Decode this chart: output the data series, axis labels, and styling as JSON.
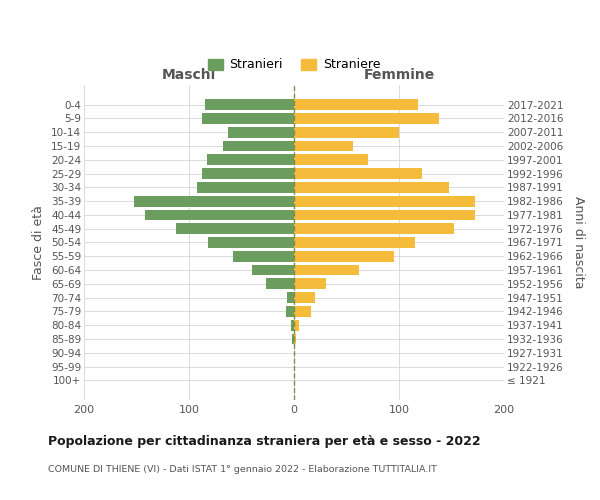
{
  "age_groups": [
    "100+",
    "95-99",
    "90-94",
    "85-89",
    "80-84",
    "75-79",
    "70-74",
    "65-69",
    "60-64",
    "55-59",
    "50-54",
    "45-49",
    "40-44",
    "35-39",
    "30-34",
    "25-29",
    "20-24",
    "15-19",
    "10-14",
    "5-9",
    "0-4"
  ],
  "birth_years": [
    "≤ 1921",
    "1922-1926",
    "1927-1931",
    "1932-1936",
    "1937-1941",
    "1942-1946",
    "1947-1951",
    "1952-1956",
    "1957-1961",
    "1962-1966",
    "1967-1971",
    "1972-1976",
    "1977-1981",
    "1982-1986",
    "1987-1991",
    "1992-1996",
    "1997-2001",
    "2002-2006",
    "2007-2011",
    "2012-2016",
    "2017-2021"
  ],
  "maschi": [
    0,
    0,
    0,
    2,
    3,
    8,
    7,
    27,
    40,
    58,
    82,
    112,
    142,
    152,
    92,
    88,
    83,
    68,
    63,
    88,
    85
  ],
  "femmine": [
    0,
    0,
    0,
    2,
    5,
    16,
    20,
    30,
    62,
    95,
    115,
    152,
    172,
    172,
    148,
    122,
    70,
    56,
    100,
    138,
    118
  ],
  "male_color": "#6b9e5e",
  "female_color": "#f5bc3c",
  "grid_color": "#d5d5d5",
  "dashed_line_color": "#888844",
  "text_color": "#555555",
  "title_color": "#1a1a1a",
  "xlim": 200,
  "title": "Popolazione per cittadinanza straniera per età e sesso - 2022",
  "subtitle": "COMUNE DI THIENE (VI) - Dati ISTAT 1° gennaio 2022 - Elaborazione TUTTITALIA.IT",
  "ylabel_left": "Fasce di età",
  "ylabel_right": "Anni di nascita",
  "legend_male": "Stranieri",
  "legend_female": "Straniere",
  "header_male": "Maschi",
  "header_female": "Femmine",
  "bar_height": 0.78
}
